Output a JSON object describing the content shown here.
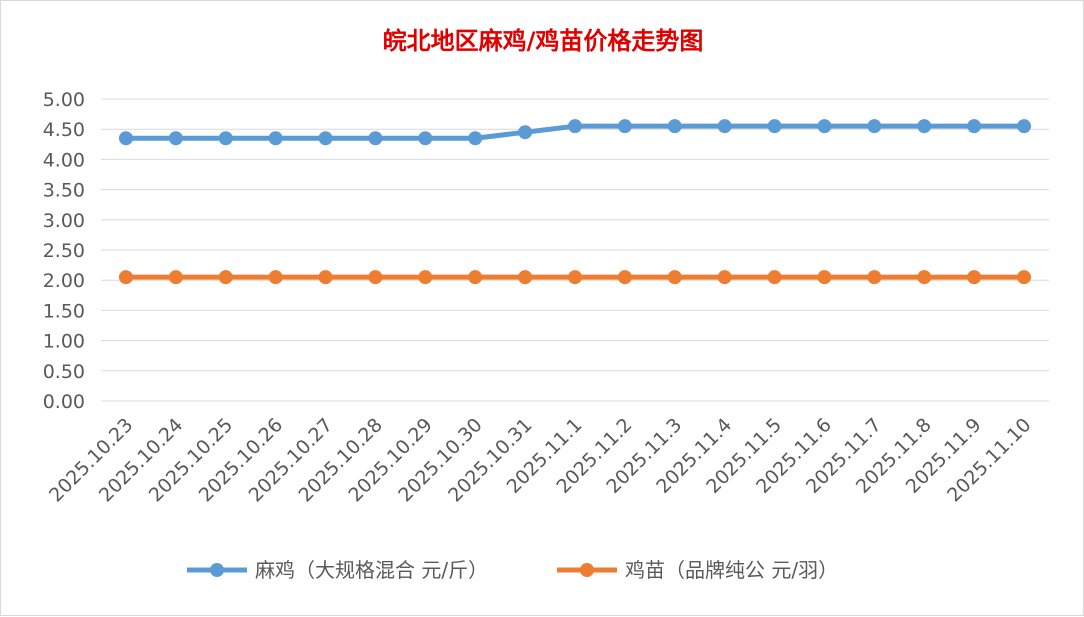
{
  "chart_data": {
    "type": "line",
    "title": "皖北地区麻鸡/鸡苗价格走势图",
    "xlabel": "",
    "ylabel": "",
    "categories": [
      "2025.10.23",
      "2025.10.24",
      "2025.10.25",
      "2025.10.26",
      "2025.10.27",
      "2025.10.28",
      "2025.10.29",
      "2025.10.30",
      "2025.10.31",
      "2025.11.1",
      "2025.11.2",
      "2025.11.3",
      "2025.11.4",
      "2025.11.5",
      "2025.11.6",
      "2025.11.7",
      "2025.11.8",
      "2025.11.9",
      "2025.11.10"
    ],
    "yticks": [
      "0.00",
      "0.50",
      "1.00",
      "1.50",
      "2.00",
      "2.50",
      "3.00",
      "3.50",
      "4.00",
      "4.50",
      "5.00"
    ],
    "ylim": [
      0,
      5
    ],
    "grid": true,
    "legend_position": "bottom",
    "series": [
      {
        "name": "麻鸡（大规格混合 元/斤）",
        "color": "#5b9bd5",
        "values": [
          4.35,
          4.35,
          4.35,
          4.35,
          4.35,
          4.35,
          4.35,
          4.35,
          4.45,
          4.55,
          4.55,
          4.55,
          4.55,
          4.55,
          4.55,
          4.55,
          4.55,
          4.55,
          4.55
        ]
      },
      {
        "name": "鸡苗（品牌纯公 元/羽）",
        "color": "#ed7d31",
        "values": [
          2.05,
          2.05,
          2.05,
          2.05,
          2.05,
          2.05,
          2.05,
          2.05,
          2.05,
          2.05,
          2.05,
          2.05,
          2.05,
          2.05,
          2.05,
          2.05,
          2.05,
          2.05,
          2.05
        ]
      }
    ]
  }
}
